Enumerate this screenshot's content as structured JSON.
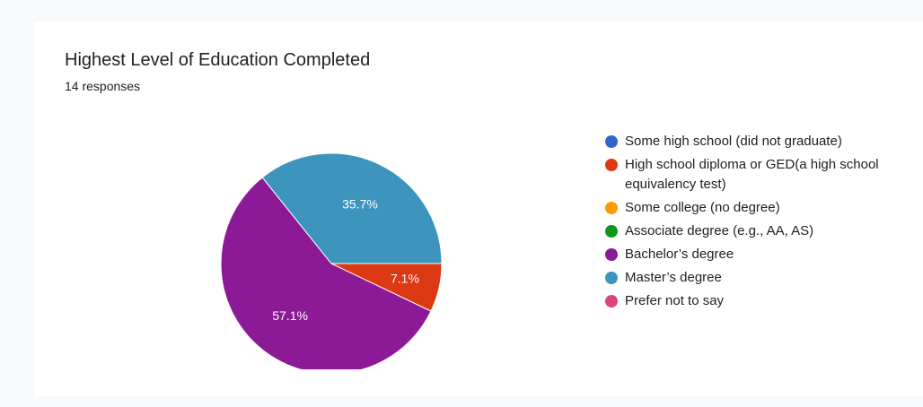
{
  "card": {
    "title": "Highest Level of Education Completed",
    "subtitle": "14 responses"
  },
  "chart_data": {
    "type": "pie",
    "title": "Highest Level of Education Completed",
    "total_responses": 14,
    "legend_position": "right",
    "categories": [
      "Some high school (did not graduate)",
      "High school diploma or GED(a high school equivalency test)",
      "Some college (no degree)",
      "Associate degree (e.g., AA, AS)",
      "Bachelor’s degree",
      "Master’s degree",
      "Prefer not to say"
    ],
    "colors": [
      "#3366cc",
      "#dc3912",
      "#ff9900",
      "#109618",
      "#8c1a96",
      "#3d94bd",
      "#dd4477"
    ],
    "values": [
      0,
      7.1,
      0,
      0,
      57.1,
      35.7,
      0
    ],
    "labels": [
      "",
      "7.1%",
      "",
      "",
      "57.1%",
      "35.7%",
      ""
    ]
  }
}
